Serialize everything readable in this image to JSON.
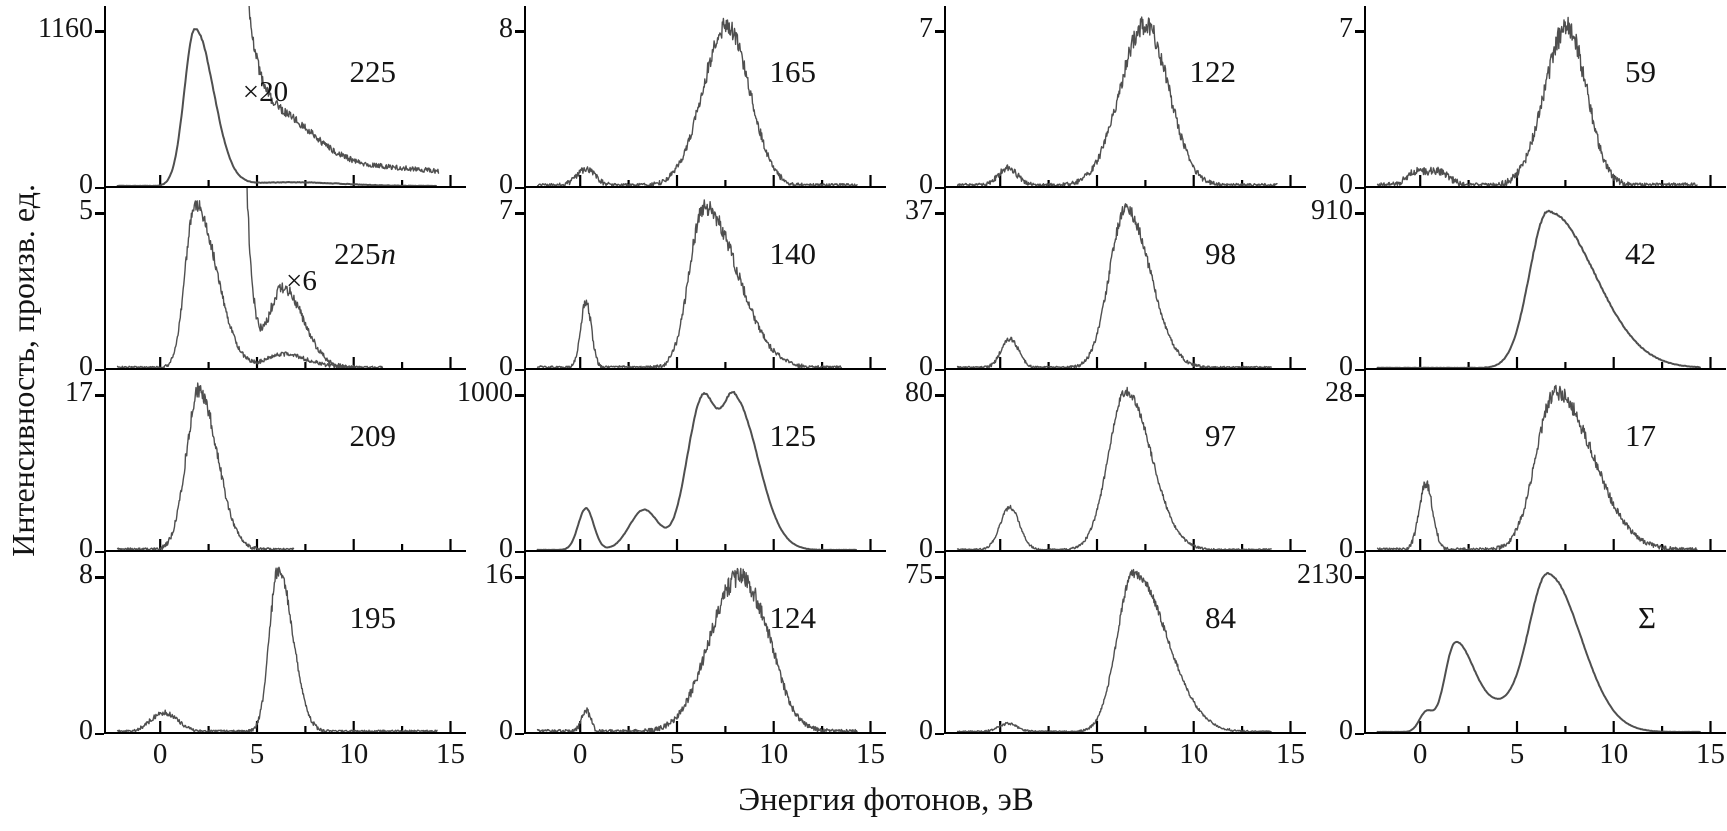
{
  "figure": {
    "y_axis_title": "Интенсивность, произв. ед.",
    "x_axis_title": "Энергия фотонов, эВ",
    "y_zero_label": "0",
    "curve_color": "#4f4f4f",
    "axis_color": "#000000",
    "x_ticks": [
      0,
      5,
      10,
      15
    ],
    "x_minor_ticks": [
      2.5,
      7.5,
      12.5
    ]
  },
  "chart_data": {
    "type": "line",
    "layout": "4x4-grid",
    "x_range": [
      -2.8,
      15.8
    ],
    "x_unit": "эВ",
    "panels": [
      {
        "label": "225",
        "suffix": "",
        "ymax": 1160,
        "smooth": true,
        "noise": 7,
        "xstart": -2.2,
        "xend": 14.3,
        "peaks": [
          {
            "c": 1.8,
            "w": 0.55,
            "wr": 0.95,
            "a": 1175
          },
          {
            "c": 6.8,
            "w": 2.5,
            "a": 28
          }
        ],
        "inset": {
          "label": "×20",
          "left_pct": 38,
          "top_pct": 40,
          "xstart": 4.3,
          "xend": 14.4,
          "noise": 55,
          "peaks": [
            {
              "c": 2.2,
              "w": 1.0,
              "wr": 1.15,
              "a": 9000
            },
            {
              "c": 5.5,
              "w": 0.8,
              "wr": 2.2,
              "a": 520
            },
            {
              "c": 11.5,
              "w": 4.5,
              "a": 135
            }
          ]
        }
      },
      {
        "label": "165",
        "suffix": "",
        "ymax": 8,
        "smooth": false,
        "noise": 0.5,
        "xstart": -2.2,
        "xend": 14.3,
        "peaks": [
          {
            "c": 0.3,
            "w": 0.5,
            "a": 0.85
          },
          {
            "c": 7.6,
            "w": 1.25,
            "wr": 1.15,
            "a": 8.3
          }
        ]
      },
      {
        "label": "122",
        "suffix": "",
        "ymax": 7,
        "smooth": false,
        "noise": 0.45,
        "xstart": -2.2,
        "xend": 14.3,
        "peaks": [
          {
            "c": 0.4,
            "w": 0.5,
            "a": 0.8
          },
          {
            "c": 7.5,
            "w": 1.3,
            "wr": 1.2,
            "a": 7.3
          }
        ]
      },
      {
        "label": "59",
        "suffix": "",
        "ymax": 7,
        "smooth": false,
        "noise": 0.55,
        "xstart": -2.2,
        "xend": 14.3,
        "peaks": [
          {
            "c": -0.3,
            "w": 0.5,
            "a": 0.55
          },
          {
            "c": 0.9,
            "w": 0.6,
            "a": 0.65
          },
          {
            "c": 7.6,
            "w": 1.15,
            "wr": 1.0,
            "a": 7.2
          }
        ]
      },
      {
        "label": "225",
        "suffix": "n",
        "ymax": 5,
        "smooth": false,
        "noise": 0.22,
        "xstart": -2.2,
        "xend": 11.5,
        "peaks": [
          {
            "c": 1.8,
            "w": 0.5,
            "wr": 1.1,
            "a": 5.3
          },
          {
            "c": 6.3,
            "w": 0.8,
            "wr": 1.3,
            "a": 0.45
          }
        ],
        "inset": {
          "label": "×6",
          "left_pct": 50,
          "top_pct": 44,
          "xstart": 4.45,
          "xend": 10.0,
          "noise": 0.3,
          "peaks": [
            {
              "c": 3.0,
              "w": 0.5,
              "wr": 0.75,
              "a": 40
            },
            {
              "c": 6.3,
              "w": 0.7,
              "wr": 1.1,
              "a": 2.6
            }
          ]
        }
      },
      {
        "label": "140",
        "suffix": "",
        "ymax": 7,
        "smooth": false,
        "noise": 0.38,
        "xstart": -2.2,
        "xend": 13.5,
        "peaks": [
          {
            "c": 0.3,
            "w": 0.28,
            "a": 3.0
          },
          {
            "c": 6.4,
            "w": 0.75,
            "wr": 1.7,
            "a": 7.3
          }
        ]
      },
      {
        "label": "98",
        "suffix": "",
        "ymax": 37,
        "smooth": false,
        "noise": 1.5,
        "xstart": -2.2,
        "xend": 14.0,
        "peaks": [
          {
            "c": 0.5,
            "w": 0.45,
            "a": 7
          },
          {
            "c": 6.5,
            "w": 0.85,
            "wr": 1.25,
            "a": 38
          }
        ]
      },
      {
        "label": "42",
        "suffix": "",
        "ymax": 910,
        "smooth": true,
        "noise": 6,
        "xstart": -2.2,
        "xend": 14.5,
        "peaks": [
          {
            "c": 6.6,
            "w": 0.95,
            "wr": 2.4,
            "a": 920
          }
        ]
      },
      {
        "label": "209",
        "suffix": "",
        "ymax": 17,
        "smooth": false,
        "noise": 0.9,
        "xstart": -2.2,
        "xend": 6.9,
        "peaks": [
          {
            "c": 2.0,
            "w": 0.65,
            "wr": 0.95,
            "a": 17.5
          }
        ]
      },
      {
        "label": "125",
        "suffix": "",
        "ymax": 1000,
        "smooth": true,
        "noise": 5,
        "xstart": -2.2,
        "xend": 14.3,
        "peaks": [
          {
            "c": 0.3,
            "w": 0.4,
            "a": 270
          },
          {
            "c": 3.3,
            "w": 0.75,
            "a": 260
          },
          {
            "c": 6.3,
            "w": 0.8,
            "wr": 0.7,
            "a": 950
          },
          {
            "c": 8.0,
            "w": 0.7,
            "wr": 1.2,
            "a": 960
          }
        ]
      },
      {
        "label": "97",
        "suffix": "",
        "ymax": 80,
        "smooth": false,
        "noise": 2.4,
        "xstart": -2.2,
        "xend": 14.0,
        "peaks": [
          {
            "c": 0.5,
            "w": 0.5,
            "a": 22
          },
          {
            "c": 6.5,
            "w": 0.9,
            "wr": 1.3,
            "a": 82
          }
        ]
      },
      {
        "label": "17",
        "suffix": "",
        "ymax": 28,
        "smooth": false,
        "noise": 1.5,
        "xstart": -2.2,
        "xend": 14.3,
        "peaks": [
          {
            "c": 0.3,
            "w": 0.35,
            "a": 12
          },
          {
            "c": 7.0,
            "w": 1.0,
            "wr": 1.9,
            "a": 28.5
          }
        ]
      },
      {
        "label": "195",
        "suffix": "",
        "ymax": 8,
        "smooth": false,
        "noise": 0.38,
        "xstart": -2.2,
        "xend": 14.3,
        "peaks": [
          {
            "c": 0.2,
            "w": 0.7,
            "a": 1.0
          },
          {
            "c": 6.1,
            "w": 0.45,
            "wr": 0.75,
            "a": 8.4
          }
        ]
      },
      {
        "label": "124",
        "suffix": "",
        "ymax": 16,
        "smooth": false,
        "noise": 1.0,
        "xstart": -2.2,
        "xend": 14.3,
        "peaks": [
          {
            "c": 0.3,
            "w": 0.25,
            "a": 2.2
          },
          {
            "c": 8.2,
            "w": 1.5,
            "wr": 1.4,
            "a": 16.0
          },
          {
            "c": 9.8,
            "w": 0.6,
            "a": 1.5
          }
        ]
      },
      {
        "label": "84",
        "suffix": "",
        "ymax": 75,
        "smooth": false,
        "noise": 2.2,
        "xstart": -2.2,
        "xend": 14.0,
        "peaks": [
          {
            "c": 0.4,
            "w": 0.5,
            "a": 4
          },
          {
            "c": 6.9,
            "w": 0.85,
            "wr": 1.7,
            "a": 77
          }
        ]
      },
      {
        "label": "Σ",
        "suffix": "",
        "ymax": 2130,
        "smooth": true,
        "noise": 8,
        "xstart": -2.2,
        "xend": 14.5,
        "peaks": [
          {
            "c": 0.3,
            "w": 0.35,
            "a": 260
          },
          {
            "c": 1.8,
            "w": 0.55,
            "wr": 0.9,
            "a": 1150
          },
          {
            "c": 3.8,
            "w": 1.2,
            "a": 330
          },
          {
            "c": 6.6,
            "w": 1.0,
            "wr": 1.7,
            "a": 2160
          }
        ]
      }
    ]
  }
}
